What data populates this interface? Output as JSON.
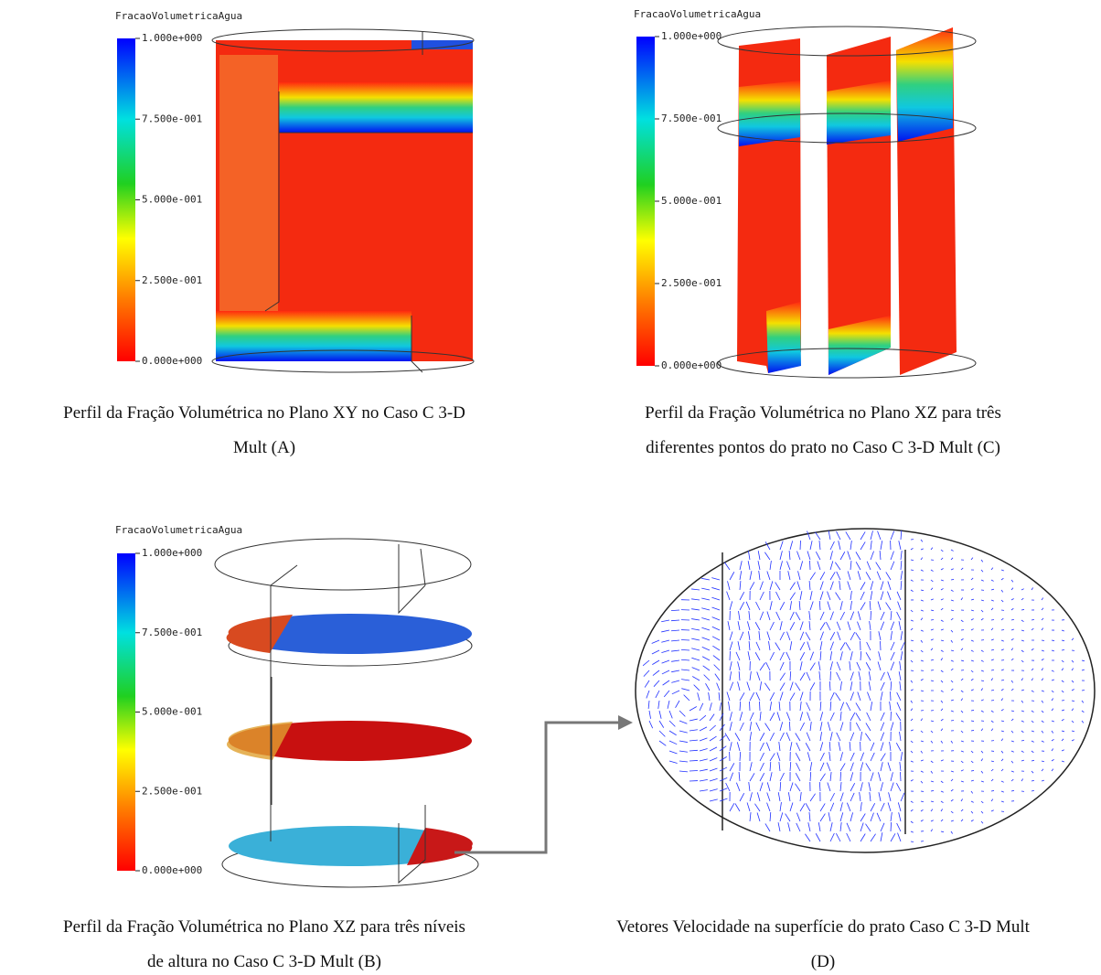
{
  "panels": [
    {
      "legend_title": "FracaoVolumetricaAgua",
      "legend_ticks": [
        "1.000e+000",
        "7.500e-001",
        "5.000e-001",
        "2.500e-001",
        "0.000e+000"
      ],
      "caption": [
        "Perfil da Fração Volumétrica no Plano XY no Caso C 3-D",
        "Mult (A)"
      ]
    },
    {
      "legend_title": "FracaoVolumetricaAgua",
      "legend_ticks": [
        "1.000e+000",
        "7.500e-001",
        "5.000e-001",
        "2.500e-001",
        "0.000e+000"
      ],
      "caption": [
        "Perfil da Fração Volumétrica no Plano XZ para três",
        "diferentes pontos do prato no Caso C 3-D Mult (C)"
      ]
    },
    {
      "legend_title": "FracaoVolumetricaAgua",
      "legend_ticks": [
        "1.000e+000",
        "7.500e-001",
        "5.000e-001",
        "2.500e-001",
        "0.000e+000"
      ],
      "caption": [
        "Perfil da Fração Volumétrica no Plano XZ para três níveis",
        "de altura no Caso C 3-D Mult (B)"
      ]
    },
    {
      "caption": [
        "Vetores Velocidade na superfície do prato Caso C 3-D Mult",
        "(D)"
      ]
    }
  ]
}
